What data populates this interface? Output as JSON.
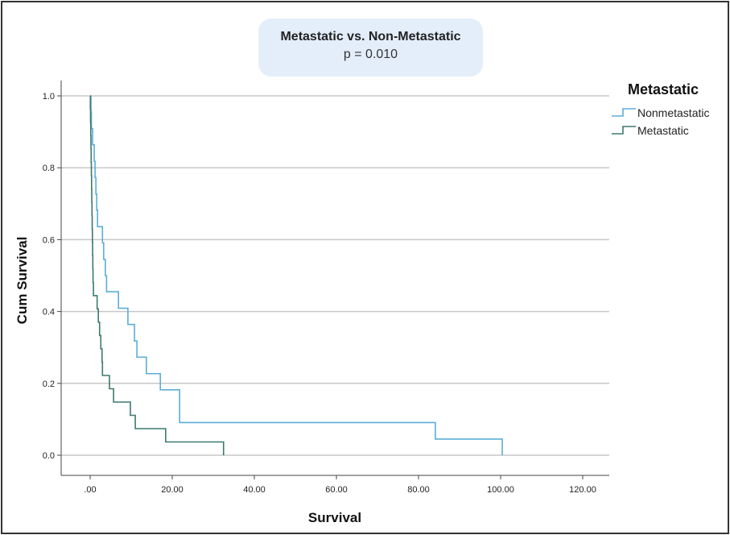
{
  "chart_data": {
    "type": "line",
    "subtype": "kaplan-meier step",
    "title": "Metastatic vs. Non-Metastatic",
    "subtitle": "p = 0.010",
    "xlabel": "Survival",
    "ylabel": "Cum Survival",
    "xlim": [
      -7,
      127
    ],
    "ylim": [
      -0.055,
      1.04
    ],
    "xticks": [
      0,
      20,
      40,
      60,
      80,
      100,
      120
    ],
    "xtick_labels": [
      ".00",
      "20.00",
      "40.00",
      "60.00",
      "80.00",
      "100.00",
      "120.00"
    ],
    "yticks": [
      0,
      0.2,
      0.4,
      0.6,
      0.8,
      1.0
    ],
    "ytick_labels": [
      "0.0",
      "0.2",
      "0.4",
      "0.6",
      "0.8",
      "1.0"
    ],
    "grid": "horizontal",
    "legend": {
      "title": "Metastatic",
      "placement": "right"
    },
    "series": [
      {
        "name": "Nonmetastatic",
        "color": "#5aaed8",
        "steps": [
          [
            0,
            1.0
          ],
          [
            0.2,
            0.955
          ],
          [
            0.3,
            0.909
          ],
          [
            0.6,
            0.864
          ],
          [
            1.0,
            0.818
          ],
          [
            1.2,
            0.773
          ],
          [
            1.4,
            0.727
          ],
          [
            1.6,
            0.682
          ],
          [
            1.8,
            0.636
          ],
          [
            3.0,
            0.591
          ],
          [
            3.3,
            0.545
          ],
          [
            3.7,
            0.5
          ],
          [
            4.0,
            0.455
          ],
          [
            6.9,
            0.409
          ],
          [
            9.2,
            0.364
          ],
          [
            10.8,
            0.318
          ],
          [
            11.4,
            0.273
          ],
          [
            13.7,
            0.227
          ],
          [
            17.1,
            0.182
          ],
          [
            21.8,
            0.091
          ],
          [
            84.1,
            0.045
          ],
          [
            100.4,
            0.0
          ]
        ]
      },
      {
        "name": "Metastatic",
        "color": "#3d7a6e",
        "steps": [
          [
            0,
            1.0
          ],
          [
            0.05,
            0.963
          ],
          [
            0.1,
            0.926
          ],
          [
            0.15,
            0.889
          ],
          [
            0.2,
            0.852
          ],
          [
            0.25,
            0.815
          ],
          [
            0.3,
            0.778
          ],
          [
            0.35,
            0.741
          ],
          [
            0.4,
            0.704
          ],
          [
            0.45,
            0.667
          ],
          [
            0.5,
            0.63
          ],
          [
            0.55,
            0.593
          ],
          [
            0.6,
            0.556
          ],
          [
            0.65,
            0.519
          ],
          [
            0.7,
            0.481
          ],
          [
            0.8,
            0.444
          ],
          [
            1.7,
            0.407
          ],
          [
            2.0,
            0.37
          ],
          [
            2.3,
            0.333
          ],
          [
            2.6,
            0.296
          ],
          [
            2.9,
            0.259
          ],
          [
            3.0,
            0.222
          ],
          [
            4.7,
            0.185
          ],
          [
            5.7,
            0.148
          ],
          [
            9.8,
            0.111
          ],
          [
            11.0,
            0.074
          ],
          [
            18.4,
            0.037
          ],
          [
            32.5,
            0.0
          ]
        ]
      }
    ]
  }
}
